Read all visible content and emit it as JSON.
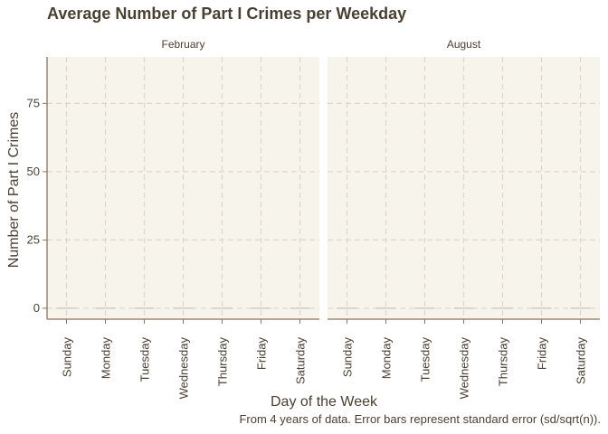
{
  "chart_data": {
    "type": "bar",
    "title": "Average Number of Part I Crimes per Weekday",
    "caption": "From 4 years of data. Error bars represent standard error (sd/sqrt(n)).",
    "xlabel": "Day of the Week",
    "ylabel": "Number of Part I Crimes",
    "ylim": [
      -4,
      92
    ],
    "yticks": [
      0,
      25,
      50,
      75
    ],
    "grid": true,
    "categories": [
      "Sunday",
      "Monday",
      "Tuesday",
      "Wednesday",
      "Thursday",
      "Friday",
      "Saturday"
    ],
    "facets": [
      {
        "label": "February",
        "values": [
          0,
          0,
          0,
          0,
          0,
          0,
          0
        ]
      },
      {
        "label": "August",
        "values": [
          0,
          0,
          0,
          0,
          0,
          0,
          0
        ]
      }
    ]
  },
  "colors": {
    "panel_bg": "#f7f4ec",
    "grid": "#ddd6cb",
    "axis": "#8a7560",
    "text": "#4a3f33",
    "bar": "#c8c2b8"
  }
}
